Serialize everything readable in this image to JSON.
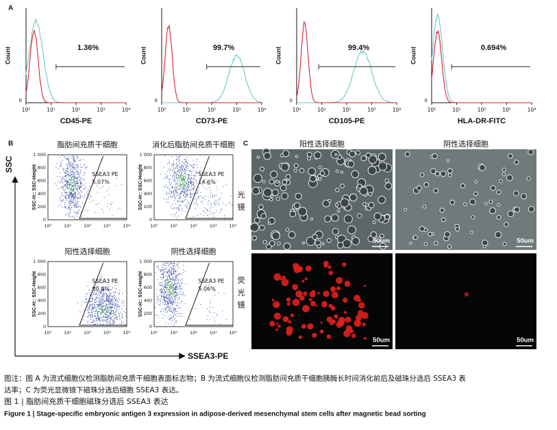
{
  "panel_a": {
    "label": "A",
    "y_label": "Count",
    "x_ticks": [
      "10⁰",
      "10¹",
      "10²",
      "10³",
      "10⁴"
    ],
    "y_zero": "0",
    "histograms": [
      {
        "percent": "1.36%",
        "x_label": "CD45-PE"
      },
      {
        "percent": "99.7%",
        "x_label": "CD73-PE"
      },
      {
        "percent": "99.4%",
        "x_label": "CD105-PE"
      },
      {
        "percent": "0.694%",
        "x_label": "HLA-DR-FITC"
      }
    ]
  },
  "panel_b": {
    "label": "B",
    "y_axis": "SSC",
    "x_axis": "SSEA3-PE",
    "y_label": "SSC-H:: SSC-Height",
    "gate_label": "SSEA3 PE",
    "y_ticks": [
      "1 000",
      "800",
      "600",
      "400",
      "200",
      "0"
    ],
    "x_ticks": [
      "10⁰",
      "10¹",
      "10²",
      "10³",
      "10⁴"
    ],
    "plots": [
      {
        "title": "脂肪间充质干细胞",
        "percent": "5.07%"
      },
      {
        "title": "消化后脂肪间充质干细胞",
        "percent": "14.6%"
      },
      {
        "title": "阳性选择细胞",
        "percent": "80.0%"
      },
      {
        "title": "阴性选择细胞",
        "percent": "5.06%"
      }
    ]
  },
  "panel_c": {
    "label": "C",
    "columns": [
      "阳性选择细胞",
      "阴性选择细胞"
    ],
    "rows": [
      [
        "光",
        "镜"
      ],
      [
        "荧",
        "光",
        "镜"
      ]
    ],
    "scale_bar": "50um"
  },
  "caption": {
    "note_line1": "图注：图 A 为流式细胞仪检测脂肪间充质干细胞表面标志物；B 为流式细胞仪检测脂肪间充质干细胞胰酶长时间消化前后及磁珠分选后 SSEA3 表",
    "note_line2": "达率；C 为荧光显微镜下磁珠分选后细胞 SSEA3 表达。",
    "title_cn": "图 1  |  脂肪间充质干细胞磁珠分选后 SSEA3 表达",
    "title_en": "Figure 1  |  Stage-specific embryonic antigen 3 expression in adipose-derived mesenchymal stem cells after magnetic bead sorting"
  }
}
